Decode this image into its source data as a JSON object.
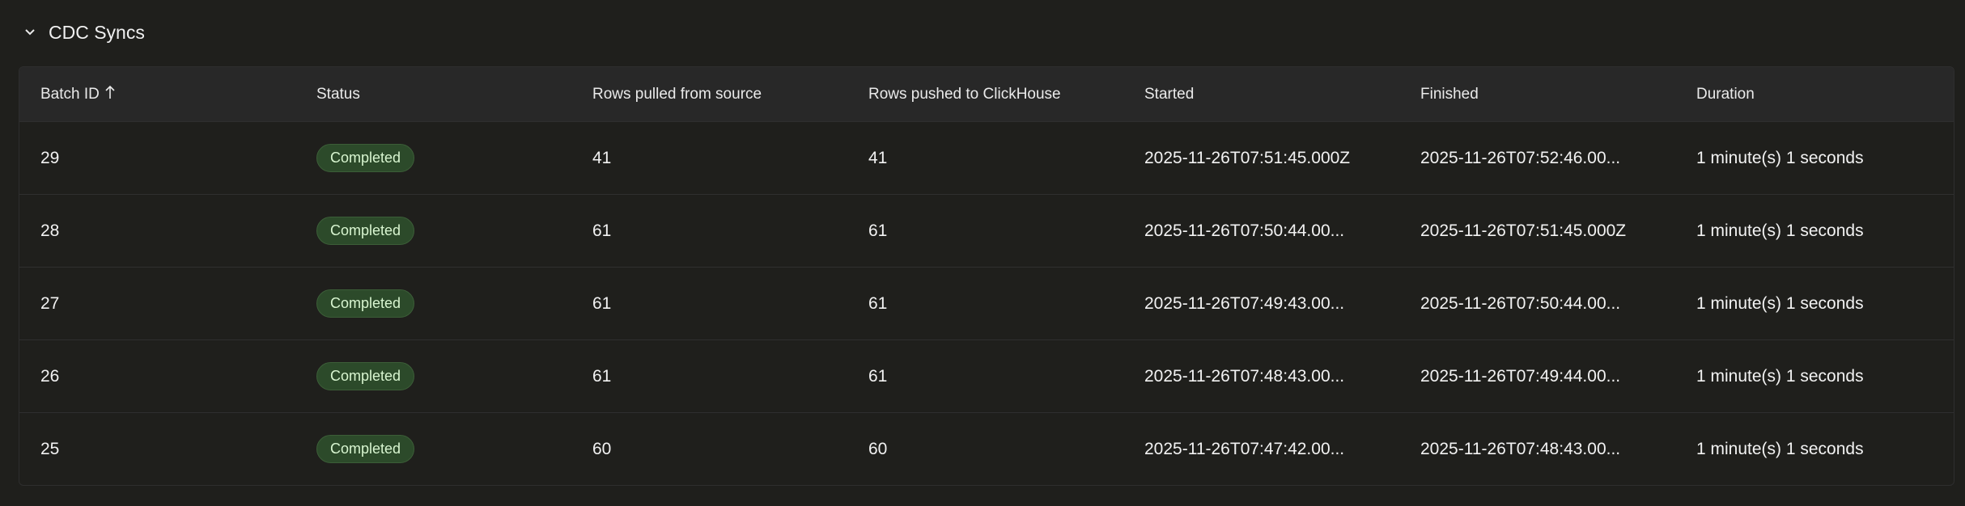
{
  "section": {
    "title": "CDC Syncs",
    "icon": "chevron-down-icon"
  },
  "table": {
    "columns": [
      "Batch ID",
      "Status",
      "Rows pulled from source",
      "Rows pushed to ClickHouse",
      "Started",
      "Finished",
      "Duration"
    ],
    "sort": {
      "column": "Batch ID",
      "direction": "ascending-arrow-icon"
    },
    "rows": [
      {
        "batch_id": "29",
        "status": "Completed",
        "pulled": "41",
        "pushed": "41",
        "started": "2025-11-26T07:51:45.000Z",
        "finished": "2025-11-26T07:52:46.00...",
        "duration": "1 minute(s) 1 seconds"
      },
      {
        "batch_id": "28",
        "status": "Completed",
        "pulled": "61",
        "pushed": "61",
        "started": "2025-11-26T07:50:44.00...",
        "finished": "2025-11-26T07:51:45.000Z",
        "duration": "1 minute(s) 1 seconds"
      },
      {
        "batch_id": "27",
        "status": "Completed",
        "pulled": "61",
        "pushed": "61",
        "started": "2025-11-26T07:49:43.00...",
        "finished": "2025-11-26T07:50:44.00...",
        "duration": "1 minute(s) 1 seconds"
      },
      {
        "batch_id": "26",
        "status": "Completed",
        "pulled": "61",
        "pushed": "61",
        "started": "2025-11-26T07:48:43.00...",
        "finished": "2025-11-26T07:49:44.00...",
        "duration": "1 minute(s) 1 seconds"
      },
      {
        "batch_id": "25",
        "status": "Completed",
        "pulled": "60",
        "pushed": "60",
        "started": "2025-11-26T07:47:42.00...",
        "finished": "2025-11-26T07:48:43.00...",
        "duration": "1 minute(s) 1 seconds"
      }
    ]
  },
  "colors": {
    "background": "#1f1f1c",
    "header": "#282828",
    "badge_bg": "#2c4a2a",
    "badge_text": "#d8f5d0"
  }
}
